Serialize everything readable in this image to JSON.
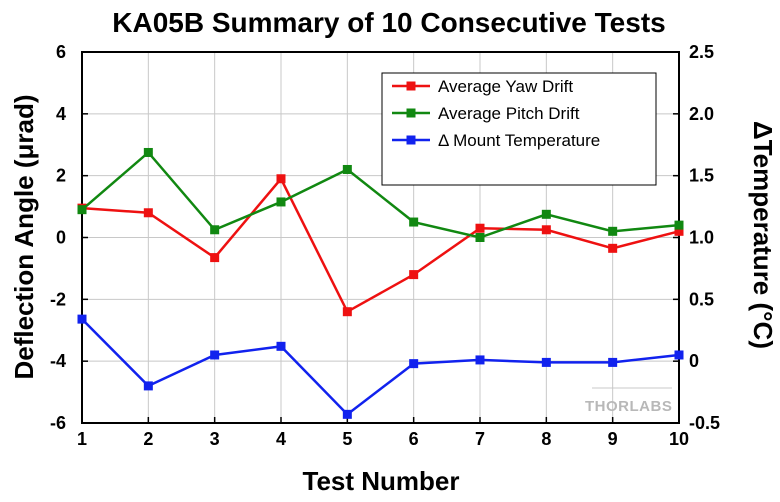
{
  "chart_data": {
    "type": "line",
    "title": "KA05B Summary of 10 Consecutive Tests",
    "xlabel": "Test Number",
    "ylabel_left": "Deflection Angle (μrad)",
    "ylabel_right": "ΔTemperature (°C)",
    "x": [
      1,
      2,
      3,
      4,
      5,
      6,
      7,
      8,
      9,
      10
    ],
    "xlim": [
      1,
      10
    ],
    "ylim_left": [
      -6,
      6
    ],
    "ylim_right": [
      -0.5,
      2.5
    ],
    "xticks": [
      "1",
      "2",
      "3",
      "4",
      "5",
      "6",
      "7",
      "8",
      "9",
      "10"
    ],
    "yticks_left": [
      "-6",
      "-4",
      "-2",
      "0",
      "2",
      "4",
      "6"
    ],
    "yticks_right": [
      "-0.5",
      "0",
      "0.5",
      "1.0",
      "1.5",
      "2.0",
      "2.5"
    ],
    "grid": true,
    "legend_position": "top-right",
    "series": [
      {
        "name": "Average Yaw Drift",
        "axis": "left",
        "color": "#ee1111",
        "values": [
          0.95,
          0.8,
          -0.65,
          1.9,
          -2.4,
          -1.2,
          0.3,
          0.25,
          -0.35,
          0.2
        ]
      },
      {
        "name": "Average Pitch Drift",
        "axis": "left",
        "color": "#118811",
        "values": [
          0.9,
          2.75,
          0.25,
          1.15,
          2.2,
          0.5,
          0.0,
          0.75,
          0.2,
          0.4
        ]
      },
      {
        "name": "Δ Mount Temperature",
        "axis": "right",
        "color": "#1122ee",
        "values": [
          0.34,
          -0.2,
          0.05,
          0.12,
          -0.43,
          -0.02,
          0.01,
          -0.01,
          -0.01,
          0.05
        ]
      }
    ]
  },
  "watermark": "THORLABS"
}
